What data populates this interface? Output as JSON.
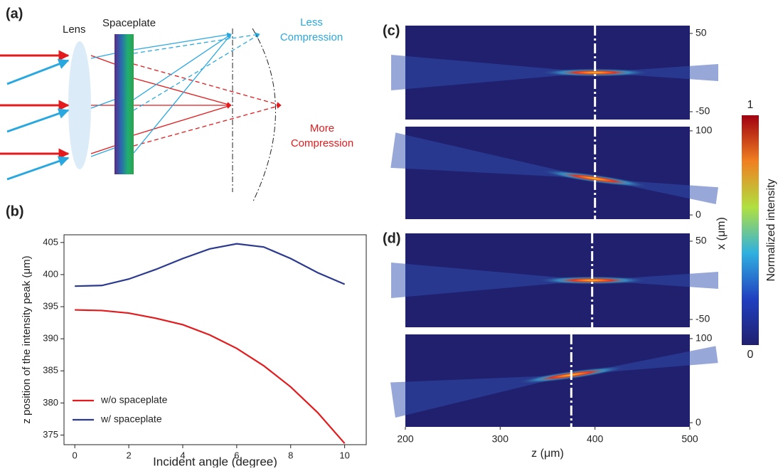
{
  "diagram": {
    "label": "(a)",
    "lens": "Lens",
    "spaceplate": "Spaceplate",
    "less": [
      "Less",
      "Compression"
    ],
    "more": [
      "More",
      "Compression"
    ]
  },
  "chart_data": [
    {
      "type": "line",
      "label": "(b)",
      "xlabel": "Incident angle (degree)",
      "ylabel": "z position of the intensity peak (μm)",
      "x": [
        0,
        1,
        2,
        3,
        4,
        5,
        6,
        7,
        8,
        9,
        10
      ],
      "series": [
        {
          "name": "w/o spaceplate",
          "color": "#e41a1c",
          "values": [
            394.5,
            394.4,
            394.0,
            393.2,
            392.2,
            390.6,
            388.5,
            385.8,
            382.5,
            378.5,
            373.7
          ]
        },
        {
          "name": "w/ spaceplate",
          "color": "#2b3a8f",
          "values": [
            398.2,
            398.3,
            399.3,
            400.8,
            402.5,
            404.0,
            404.8,
            404.3,
            402.5,
            400.3,
            398.5
          ]
        }
      ],
      "xlim": [
        -0.4,
        10.8
      ],
      "ylim": [
        373.5,
        406.2
      ],
      "xticks": [
        0,
        2,
        4,
        6,
        8,
        10
      ],
      "yticks": [
        375,
        380,
        385,
        390,
        395,
        400,
        405
      ],
      "legend": "lower left"
    },
    {
      "type": "heatmap",
      "label": "(c)",
      "xlim": [
        200,
        500
      ],
      "ylim": [
        -60,
        60
      ],
      "yticks": [
        50,
        -50
      ],
      "focus_z": 400,
      "tilt": 0
    },
    {
      "type": "heatmap",
      "xlim": [
        200,
        500
      ],
      "ylim": [
        -5,
        105
      ],
      "yticks": [
        100,
        0
      ],
      "focus_z": 400,
      "tilt": 1
    },
    {
      "type": "heatmap",
      "label": "(d)",
      "ylabel": "x (μm)",
      "xlim": [
        200,
        500
      ],
      "ylim": [
        -60,
        60
      ],
      "yticks": [
        50,
        -50
      ],
      "focus_z": 397,
      "tilt": 0
    },
    {
      "type": "heatmap",
      "xlabel": "z (μm)",
      "xlim": [
        200,
        500
      ],
      "ylim": [
        -5,
        105
      ],
      "yticks": [
        100,
        0
      ],
      "xticks": [
        200,
        300,
        400,
        500
      ],
      "focus_z": 375,
      "tilt": -1
    }
  ],
  "colorbar": {
    "label": "Normalized intensity",
    "ticks": [
      1,
      0
    ]
  }
}
